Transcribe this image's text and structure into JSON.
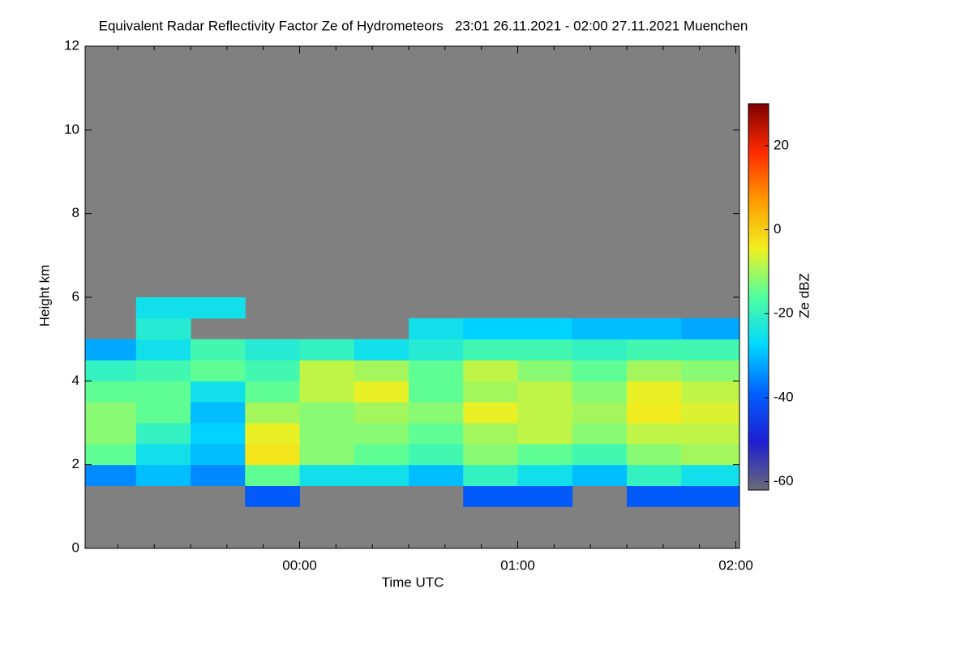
{
  "chart_data": {
    "type": "heatmap",
    "title": "Equivalent Radar Reflectivity Factor Ze of Hydrometeors   23:01 26.11.2021 - 02:00 27.11.2021 Muenchen",
    "x_label": "Time UTC",
    "y_label": "Height km",
    "colorbar_label": "Ze dBZ",
    "background": "#808080",
    "xlim": [
      -59,
      121
    ],
    "xticks": [
      {
        "value": 0,
        "label": "00:00"
      },
      {
        "value": 60,
        "label": "01:00"
      },
      {
        "value": 120,
        "label": "02:00"
      }
    ],
    "xminorticks": [
      -50,
      -40,
      -30,
      -20,
      -10,
      10,
      20,
      30,
      40,
      50,
      70,
      80,
      90,
      100,
      110
    ],
    "ylim": [
      0,
      12
    ],
    "yticks": [
      0,
      2,
      4,
      6,
      8,
      10,
      12
    ],
    "clim": [
      -62,
      30
    ],
    "cticks": [
      20,
      0,
      -20,
      -40,
      -60
    ],
    "colormap": [
      "#6b6b78",
      "#1e1ed2",
      "#0060ff",
      "#00d8ff",
      "#50ffa0",
      "#f0f020",
      "#ff9a00",
      "#ff2a00",
      "#7f0000"
    ],
    "xbins": [
      -59,
      -45,
      -30,
      -15,
      0,
      15,
      30,
      45,
      60,
      75,
      90,
      105,
      121
    ],
    "ybins": [
      0,
      0.5,
      1,
      1.5,
      2,
      2.5,
      3,
      3.5,
      4,
      4.5,
      5,
      5.5,
      6
    ],
    "z": [
      [
        null,
        null,
        null,
        null,
        null,
        null,
        null,
        null,
        null,
        null,
        null,
        null
      ],
      [
        null,
        null,
        null,
        null,
        null,
        null,
        null,
        null,
        null,
        null,
        null,
        null
      ],
      [
        null,
        null,
        null,
        -40,
        null,
        null,
        null,
        -40,
        -40,
        null,
        -40,
        -40
      ],
      [
        -35,
        -30,
        -35,
        -15,
        -25,
        -25,
        -30,
        -20,
        -25,
        -30,
        -20,
        -25
      ],
      [
        -15,
        -25,
        -30,
        -3,
        -12,
        -15,
        -18,
        -12,
        -15,
        -18,
        -12,
        -10
      ],
      [
        -12,
        -20,
        -28,
        -5,
        -12,
        -12,
        -15,
        -10,
        -8,
        -12,
        -8,
        -8
      ],
      [
        -12,
        -15,
        -30,
        -10,
        -12,
        -10,
        -12,
        -5,
        -8,
        -10,
        -4,
        -6
      ],
      [
        -15,
        -15,
        -25,
        -15,
        -8,
        -5,
        -15,
        -10,
        -8,
        -12,
        -5,
        -8
      ],
      [
        -20,
        -18,
        -15,
        -18,
        -8,
        -10,
        -15,
        -8,
        -12,
        -15,
        -10,
        -12
      ],
      [
        -32,
        -25,
        -18,
        -22,
        -20,
        -25,
        -22,
        -18,
        -18,
        -20,
        -18,
        -18
      ],
      [
        null,
        -22,
        null,
        null,
        null,
        null,
        -25,
        -28,
        -28,
        -30,
        -30,
        -32
      ],
      [
        null,
        -25,
        -25,
        null,
        null,
        null,
        null,
        null,
        null,
        null,
        null,
        null
      ]
    ]
  }
}
